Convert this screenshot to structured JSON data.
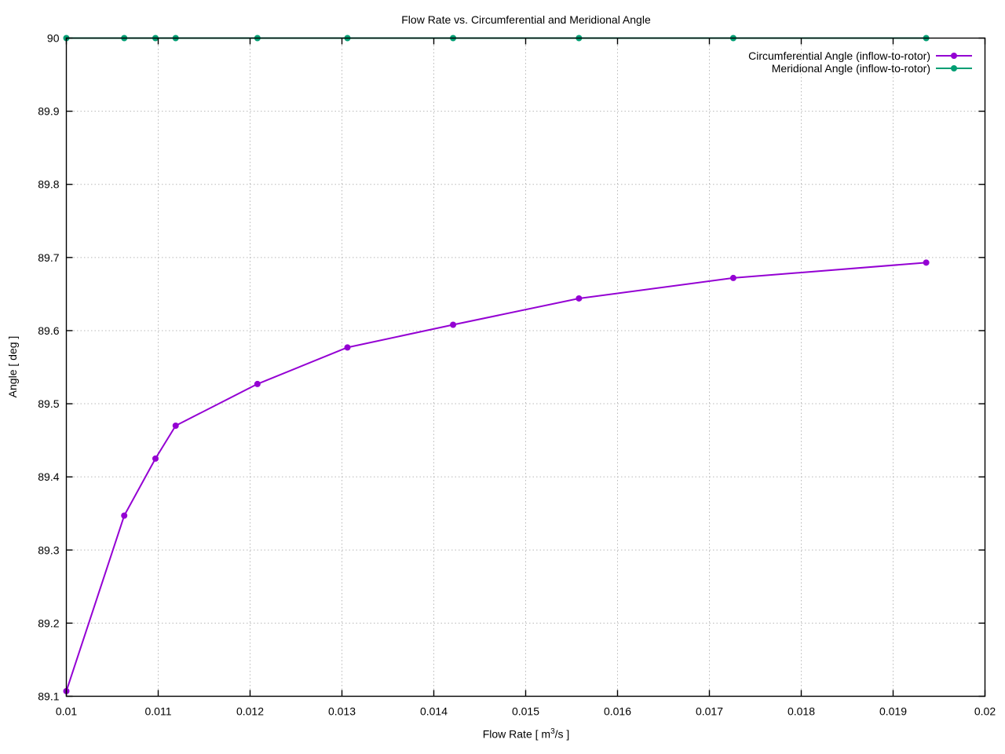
{
  "chart_data": {
    "type": "line",
    "title": "Flow Rate vs. Circumferential and Meridional Angle",
    "xlabel": {
      "prefix": "Flow Rate [ m",
      "sup": "3",
      "suffix": "/s ]"
    },
    "ylabel": "Angle [ deg ]",
    "xlim": [
      0.01,
      0.02
    ],
    "ylim": [
      89.1,
      90
    ],
    "grid": true,
    "legend_position": "top-right-inside",
    "grid_color": "#b8b8b8",
    "axis_color": "#000000",
    "x_ticks": [
      {
        "v": 0.01,
        "label": "0.01"
      },
      {
        "v": 0.011,
        "label": "0.011"
      },
      {
        "v": 0.012,
        "label": "0.012"
      },
      {
        "v": 0.013,
        "label": "0.013"
      },
      {
        "v": 0.014,
        "label": "0.014"
      },
      {
        "v": 0.015,
        "label": "0.015"
      },
      {
        "v": 0.016,
        "label": "0.016"
      },
      {
        "v": 0.017,
        "label": "0.017"
      },
      {
        "v": 0.018,
        "label": "0.018"
      },
      {
        "v": 0.019,
        "label": "0.019"
      },
      {
        "v": 0.02,
        "label": "0.02"
      }
    ],
    "y_ticks": [
      {
        "v": 89.1,
        "label": "89.1"
      },
      {
        "v": 89.2,
        "label": "89.2"
      },
      {
        "v": 89.3,
        "label": "89.3"
      },
      {
        "v": 89.4,
        "label": "89.4"
      },
      {
        "v": 89.5,
        "label": "89.5"
      },
      {
        "v": 89.6,
        "label": "89.6"
      },
      {
        "v": 89.7,
        "label": "89.7"
      },
      {
        "v": 89.8,
        "label": "89.8"
      },
      {
        "v": 89.9,
        "label": "89.9"
      },
      {
        "v": 90,
        "label": "90"
      }
    ],
    "x": [
      0.01,
      0.01063,
      0.01097,
      0.01119,
      0.01208,
      0.01306,
      0.01421,
      0.01558,
      0.01726,
      0.01936
    ],
    "series": [
      {
        "id": "circumferential",
        "name": "Circumferential Angle (inflow-to-rotor)",
        "color": "#9400d3",
        "marker": "filled-circle",
        "values": [
          89.107,
          89.347,
          89.425,
          89.47,
          89.527,
          89.577,
          89.608,
          89.644,
          89.672,
          89.693
        ]
      },
      {
        "id": "meridional",
        "name": "Meridional Angle (inflow-to-rotor)",
        "color": "#009e73",
        "marker": "filled-circle",
        "values": [
          90,
          90,
          90,
          90,
          90,
          90,
          90,
          90,
          90,
          90
        ]
      }
    ]
  }
}
